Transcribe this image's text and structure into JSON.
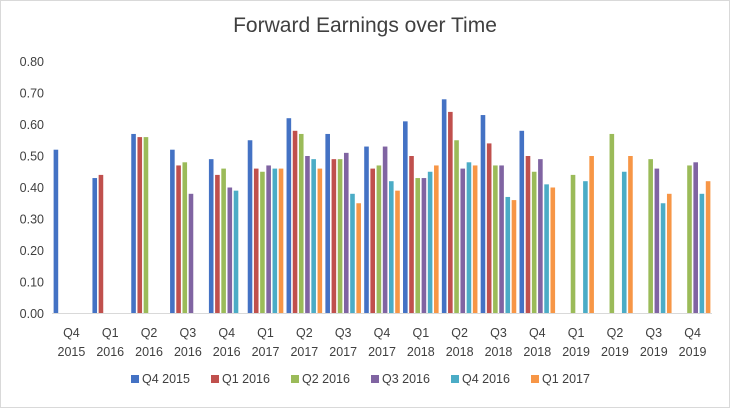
{
  "chart_data": {
    "type": "bar",
    "title": "Forward Earnings over Time",
    "xlabel": "",
    "ylabel": "",
    "ylim": [
      0,
      0.8
    ],
    "yticks": [
      "0.00",
      "0.10",
      "0.20",
      "0.30",
      "0.40",
      "0.50",
      "0.60",
      "0.70",
      "0.80"
    ],
    "grid": false,
    "legend_position": "bottom",
    "categories": [
      [
        "Q4",
        "2015"
      ],
      [
        "Q1",
        "2016"
      ],
      [
        "Q2",
        "2016"
      ],
      [
        "Q3",
        "2016"
      ],
      [
        "Q4",
        "2016"
      ],
      [
        "Q1",
        "2017"
      ],
      [
        "Q2",
        "2017"
      ],
      [
        "Q3",
        "2017"
      ],
      [
        "Q4",
        "2017"
      ],
      [
        "Q1",
        "2018"
      ],
      [
        "Q2",
        "2018"
      ],
      [
        "Q3",
        "2018"
      ],
      [
        "Q4",
        "2018"
      ],
      [
        "Q1",
        "2019"
      ],
      [
        "Q2",
        "2019"
      ],
      [
        "Q3",
        "2019"
      ],
      [
        "Q4",
        "2019"
      ]
    ],
    "series": [
      {
        "name": "Q4 2015",
        "color": "#4472C4",
        "values": [
          0.52,
          0.43,
          0.57,
          0.52,
          0.49,
          0.55,
          0.62,
          0.57,
          0.53,
          0.61,
          0.68,
          0.63,
          0.58,
          null,
          null,
          null,
          null
        ]
      },
      {
        "name": "Q1 2016",
        "color": "#C0504D",
        "values": [
          null,
          0.44,
          0.56,
          0.47,
          0.44,
          0.46,
          0.58,
          0.49,
          0.46,
          0.5,
          0.64,
          0.54,
          0.5,
          null,
          null,
          null,
          null
        ]
      },
      {
        "name": "Q2 2016",
        "color": "#9BBB59",
        "values": [
          null,
          null,
          0.56,
          0.48,
          0.46,
          0.45,
          0.57,
          0.49,
          0.47,
          0.43,
          0.55,
          0.47,
          0.45,
          0.44,
          0.57,
          0.49,
          0.47
        ]
      },
      {
        "name": "Q3 2016",
        "color": "#8064A2",
        "values": [
          null,
          null,
          null,
          0.38,
          0.4,
          0.47,
          0.5,
          0.51,
          0.53,
          0.43,
          0.46,
          0.47,
          0.49,
          null,
          null,
          0.46,
          0.48
        ]
      },
      {
        "name": "Q4 2016",
        "color": "#4BACC6",
        "values": [
          null,
          null,
          null,
          null,
          0.39,
          0.46,
          0.49,
          0.38,
          0.42,
          0.45,
          0.48,
          0.37,
          0.41,
          0.42,
          0.45,
          0.35,
          0.38
        ]
      },
      {
        "name": "Q1 2017",
        "color": "#F79646",
        "values": [
          null,
          null,
          null,
          null,
          null,
          0.46,
          0.46,
          0.35,
          0.39,
          0.47,
          0.47,
          0.36,
          0.4,
          0.5,
          0.5,
          0.38,
          0.42
        ]
      }
    ]
  }
}
